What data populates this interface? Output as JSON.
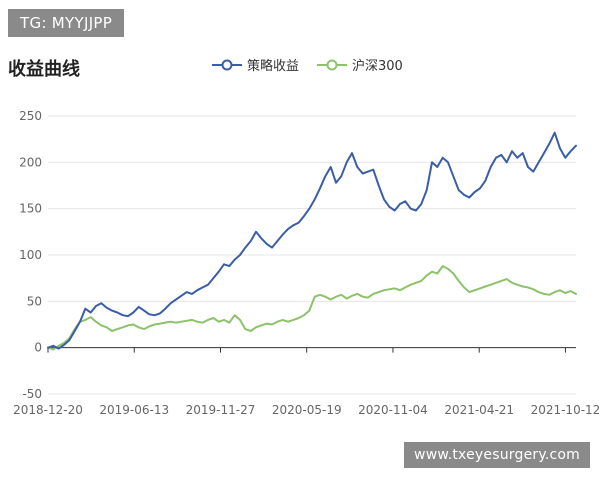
{
  "badge": {
    "text": "TG: MYYJJPP"
  },
  "watermark": {
    "text": "www.txeyesurgery.com"
  },
  "chart_data": {
    "type": "line",
    "title": "收益曲线",
    "xlabel": "",
    "ylabel": "",
    "ylim": [
      -50,
      250
    ],
    "yticks": [
      -50,
      0,
      50,
      100,
      150,
      200,
      250
    ],
    "xticks": [
      "2018-12-20",
      "2019-06-13",
      "2019-11-27",
      "2020-05-19",
      "2020-11-04",
      "2021-04-21",
      "2021-10-12"
    ],
    "grid": "horizontal",
    "legend": "top",
    "series": [
      {
        "name": "策略收益",
        "color": "#3b5da8",
        "values": [
          0,
          2,
          -1,
          3,
          8,
          18,
          28,
          42,
          38,
          45,
          48,
          43,
          40,
          38,
          35,
          34,
          38,
          44,
          40,
          36,
          35,
          37,
          42,
          48,
          52,
          56,
          60,
          58,
          62,
          65,
          68,
          75,
          82,
          90,
          88,
          95,
          100,
          108,
          115,
          125,
          118,
          112,
          108,
          115,
          122,
          128,
          132,
          135,
          142,
          150,
          160,
          172,
          185,
          195,
          178,
          185,
          200,
          210,
          195,
          188,
          190,
          192,
          175,
          160,
          152,
          148,
          155,
          158,
          150,
          148,
          155,
          170,
          200,
          195,
          205,
          200,
          185,
          170,
          165,
          162,
          168,
          172,
          180,
          195,
          205,
          208,
          200,
          212,
          205,
          210,
          195,
          190,
          200,
          210,
          220,
          232,
          215,
          205,
          212,
          218
        ]
      },
      {
        "name": "沪深300",
        "color": "#8dc26b",
        "values": [
          0,
          -2,
          2,
          5,
          10,
          20,
          28,
          30,
          33,
          28,
          24,
          22,
          18,
          20,
          22,
          24,
          25,
          22,
          20,
          23,
          25,
          26,
          27,
          28,
          27,
          28,
          29,
          30,
          28,
          27,
          30,
          32,
          28,
          30,
          27,
          35,
          30,
          20,
          18,
          22,
          24,
          26,
          25,
          28,
          30,
          28,
          30,
          32,
          35,
          40,
          55,
          57,
          55,
          52,
          55,
          57,
          53,
          56,
          58,
          55,
          54,
          58,
          60,
          62,
          63,
          64,
          62,
          65,
          68,
          70,
          72,
          78,
          82,
          80,
          88,
          85,
          80,
          72,
          65,
          60,
          62,
          64,
          66,
          68,
          70,
          72,
          74,
          70,
          68,
          66,
          65,
          63,
          60,
          58,
          57,
          60,
          62,
          59,
          61,
          58
        ]
      }
    ]
  }
}
